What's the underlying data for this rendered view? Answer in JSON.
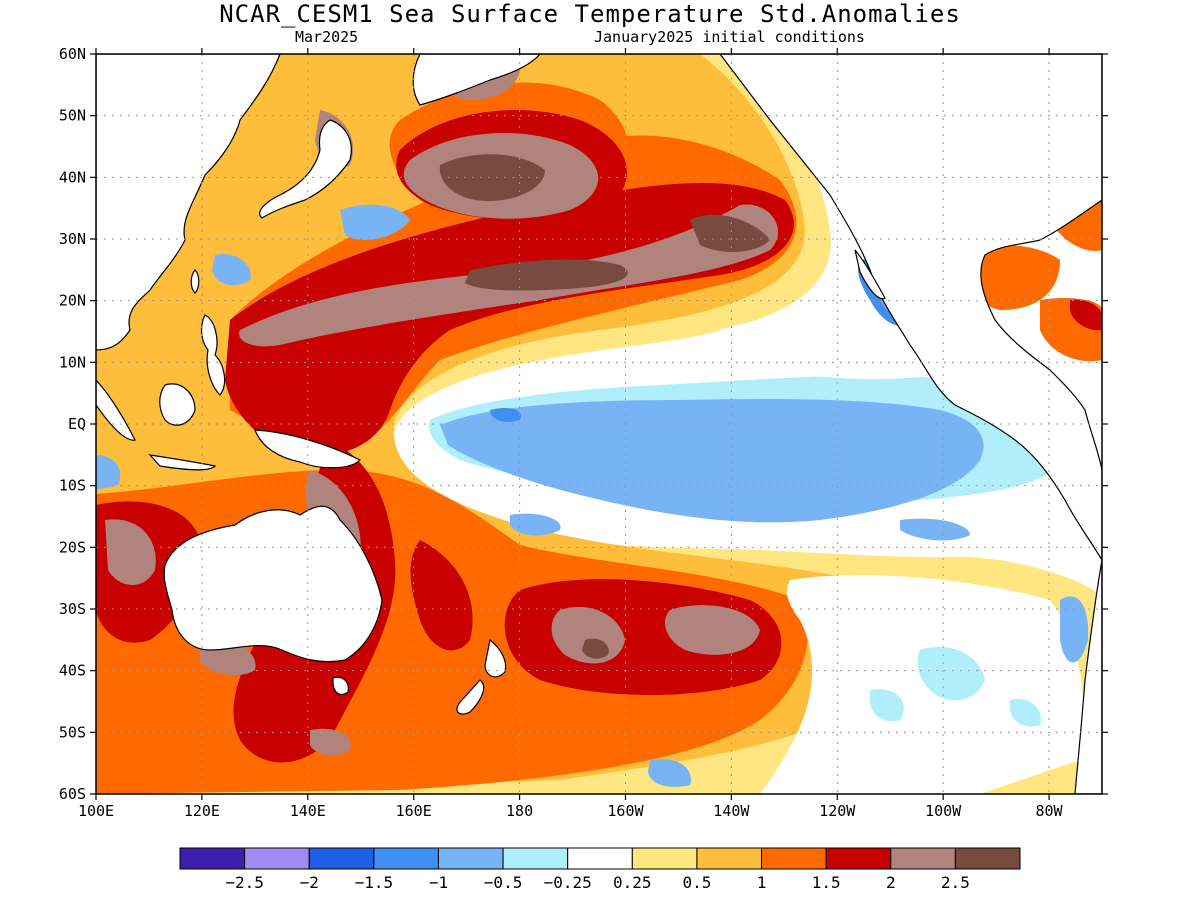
{
  "title": "NCAR_CESM1 Sea Surface Temperature Std.Anomalies",
  "subtitle_left": "Mar2025",
  "subtitle_right": "January2025 initial conditions",
  "map": {
    "lat_range": [
      -60,
      60
    ],
    "lon_range": [
      100,
      290
    ],
    "lat_ticks": [
      "60N",
      "50N",
      "40N",
      "30N",
      "20N",
      "10N",
      "EQ",
      "10S",
      "20S",
      "30S",
      "40S",
      "50S",
      "60S"
    ],
    "lon_ticks": [
      "100E",
      "120E",
      "140E",
      "160E",
      "180",
      "160W",
      "140W",
      "120W",
      "100W",
      "80W"
    ],
    "lon_tick_values": [
      100,
      120,
      140,
      160,
      180,
      200,
      220,
      240,
      260,
      280
    ],
    "grid": true
  },
  "colorbar": {
    "colors": [
      "#3c1fb0",
      "#9f8cf2",
      "#1f5fe6",
      "#3f8ff0",
      "#78b4f5",
      "#afeefa",
      "#ffffff",
      "#ffe680",
      "#ffbd3c",
      "#ff6a00",
      "#c80000",
      "#b0847c",
      "#784b41"
    ],
    "labels": [
      "−2.5",
      "−2",
      "−1.5",
      "−1",
      "−0.5",
      "−0.25",
      "0.25",
      "0.5",
      "1",
      "1.5",
      "2",
      "2.5"
    ]
  }
}
